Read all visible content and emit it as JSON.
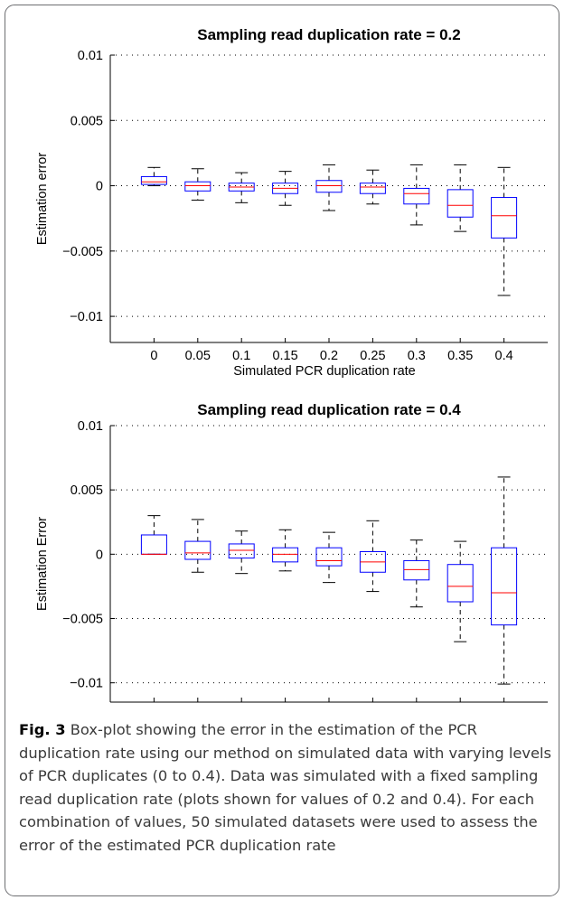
{
  "chart_data": [
    {
      "type": "box",
      "title": "Sampling read duplication rate = 0.2",
      "xlabel": "Simulated PCR duplication rate",
      "ylabel": "Estimation error",
      "ylim": [
        -0.012,
        0.01
      ],
      "yticks": [
        0.01,
        0.005,
        0,
        -0.005,
        -0.01
      ],
      "ytick_labels": [
        "0.01",
        "0.005",
        "0",
        "−0.005",
        "−0.01"
      ],
      "grid": "y-dotted",
      "categories": [
        "0",
        "0.05",
        "0.1",
        "0.15",
        "0.2",
        "0.25",
        "0.3",
        "0.35",
        "0.4"
      ],
      "boxes": [
        {
          "whisker_low": 0.0,
          "q1": 0.0001,
          "median": 0.0003,
          "q3": 0.0007,
          "whisker_high": 0.0014
        },
        {
          "whisker_low": -0.0011,
          "q1": -0.0004,
          "median": 0.0,
          "q3": 0.0003,
          "whisker_high": 0.0013
        },
        {
          "whisker_low": -0.0013,
          "q1": -0.0004,
          "median": -0.0001,
          "q3": 0.0002,
          "whisker_high": 0.001
        },
        {
          "whisker_low": -0.0015,
          "q1": -0.0006,
          "median": -0.0002,
          "q3": 0.0002,
          "whisker_high": 0.0011
        },
        {
          "whisker_low": -0.0019,
          "q1": -0.0005,
          "median": 0.0,
          "q3": 0.0004,
          "whisker_high": 0.0016
        },
        {
          "whisker_low": -0.0014,
          "q1": -0.0006,
          "median": -0.0001,
          "q3": 0.0002,
          "whisker_high": 0.0012
        },
        {
          "whisker_low": -0.003,
          "q1": -0.0014,
          "median": -0.0006,
          "q3": -0.0002,
          "whisker_high": 0.0016
        },
        {
          "whisker_low": -0.0035,
          "q1": -0.0024,
          "median": -0.0015,
          "q3": -0.0003,
          "whisker_high": 0.0016
        },
        {
          "whisker_low": -0.0084,
          "q1": -0.004,
          "median": -0.0023,
          "q3": -0.0009,
          "whisker_high": 0.0014
        }
      ],
      "box_color": "#0000ff",
      "median_color": "#ff0000"
    },
    {
      "type": "box",
      "title": "Sampling read duplication rate = 0.4",
      "xlabel": "Simulated PCR duplication rate",
      "ylabel": "Estimation Error",
      "ylim": [
        -0.0115,
        0.01
      ],
      "yticks": [
        0.01,
        0.005,
        0,
        -0.005,
        -0.01
      ],
      "ytick_labels": [
        "0.01",
        "0.005",
        "0",
        "−0.005",
        "−0.01"
      ],
      "grid": "y-dotted",
      "categories": [
        "0",
        "0.05",
        "0.1",
        "0.15",
        "0.2",
        "0.25",
        "0.3",
        "0.35",
        "0.4"
      ],
      "boxes": [
        {
          "whisker_low": 0.0,
          "q1": 0.0,
          "median": 0.0,
          "q3": 0.0015,
          "whisker_high": 0.003
        },
        {
          "whisker_low": -0.0014,
          "q1": -0.0004,
          "median": 0.0001,
          "q3": 0.001,
          "whisker_high": 0.0027
        },
        {
          "whisker_low": -0.0015,
          "q1": -0.0003,
          "median": 0.0003,
          "q3": 0.0008,
          "whisker_high": 0.0018
        },
        {
          "whisker_low": -0.0013,
          "q1": -0.0006,
          "median": 0.0,
          "q3": 0.0005,
          "whisker_high": 0.0019
        },
        {
          "whisker_low": -0.0022,
          "q1": -0.0009,
          "median": -0.0005,
          "q3": 0.0005,
          "whisker_high": 0.0017
        },
        {
          "whisker_low": -0.0029,
          "q1": -0.0014,
          "median": -0.0006,
          "q3": 0.0002,
          "whisker_high": 0.0026
        },
        {
          "whisker_low": -0.0041,
          "q1": -0.002,
          "median": -0.0012,
          "q3": -0.0005,
          "whisker_high": 0.0011
        },
        {
          "whisker_low": -0.0068,
          "q1": -0.0037,
          "median": -0.0025,
          "q3": -0.0008,
          "whisker_high": 0.001
        },
        {
          "whisker_low": -0.0101,
          "q1": -0.0055,
          "median": -0.003,
          "q3": 0.0005,
          "whisker_high": 0.006
        }
      ],
      "box_color": "#0000ff",
      "median_color": "#ff0000"
    }
  ],
  "caption": {
    "label": "Fig. 3",
    "text": "Box-plot showing the error in the estimation of the PCR duplication rate using our method on simulated data with varying levels of PCR duplicates (0 to 0.4). Data was simulated with a fixed sampling read duplication rate (plots shown for values of 0.2 and 0.4). For each combination of values, 50 simulated datasets were used to assess the error of the estimated PCR duplication rate"
  }
}
